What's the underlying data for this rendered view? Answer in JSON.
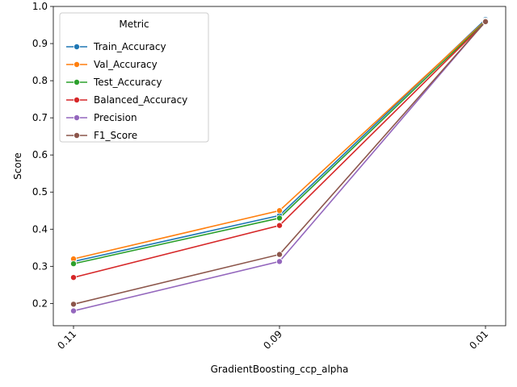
{
  "chart_data": {
    "type": "line",
    "title": "",
    "xlabel": "GradientBoosting_ccp_alpha",
    "ylabel": "Score",
    "categories": [
      "0.11",
      "0.09",
      "0.01"
    ],
    "ylim": [
      0.14,
      1.0
    ],
    "yticks": [
      0.2,
      0.3,
      0.4,
      0.5,
      0.6,
      0.7,
      0.8,
      0.9,
      1.0
    ],
    "ytick_labels": [
      "0.2",
      "0.3",
      "0.4",
      "0.5",
      "0.6",
      "0.7",
      "0.8",
      "0.9",
      "1.0"
    ],
    "grid": false,
    "legend": {
      "title": "Metric",
      "position": "upper-left"
    },
    "series": [
      {
        "name": "Train_Accuracy",
        "color": "#1f77b4",
        "values": [
          0.313,
          0.437,
          0.965
        ]
      },
      {
        "name": "Val_Accuracy",
        "color": "#ff7f0e",
        "values": [
          0.32,
          0.45,
          0.962
        ]
      },
      {
        "name": "Test_Accuracy",
        "color": "#2ca02c",
        "values": [
          0.307,
          0.43,
          0.96
        ]
      },
      {
        "name": "Balanced_Accuracy",
        "color": "#d62728",
        "values": [
          0.27,
          0.41,
          0.958
        ]
      },
      {
        "name": "Precision",
        "color": "#9467bd",
        "values": [
          0.18,
          0.313,
          0.96
        ]
      },
      {
        "name": "F1_Score",
        "color": "#8c564b",
        "values": [
          0.198,
          0.332,
          0.959
        ]
      }
    ]
  }
}
